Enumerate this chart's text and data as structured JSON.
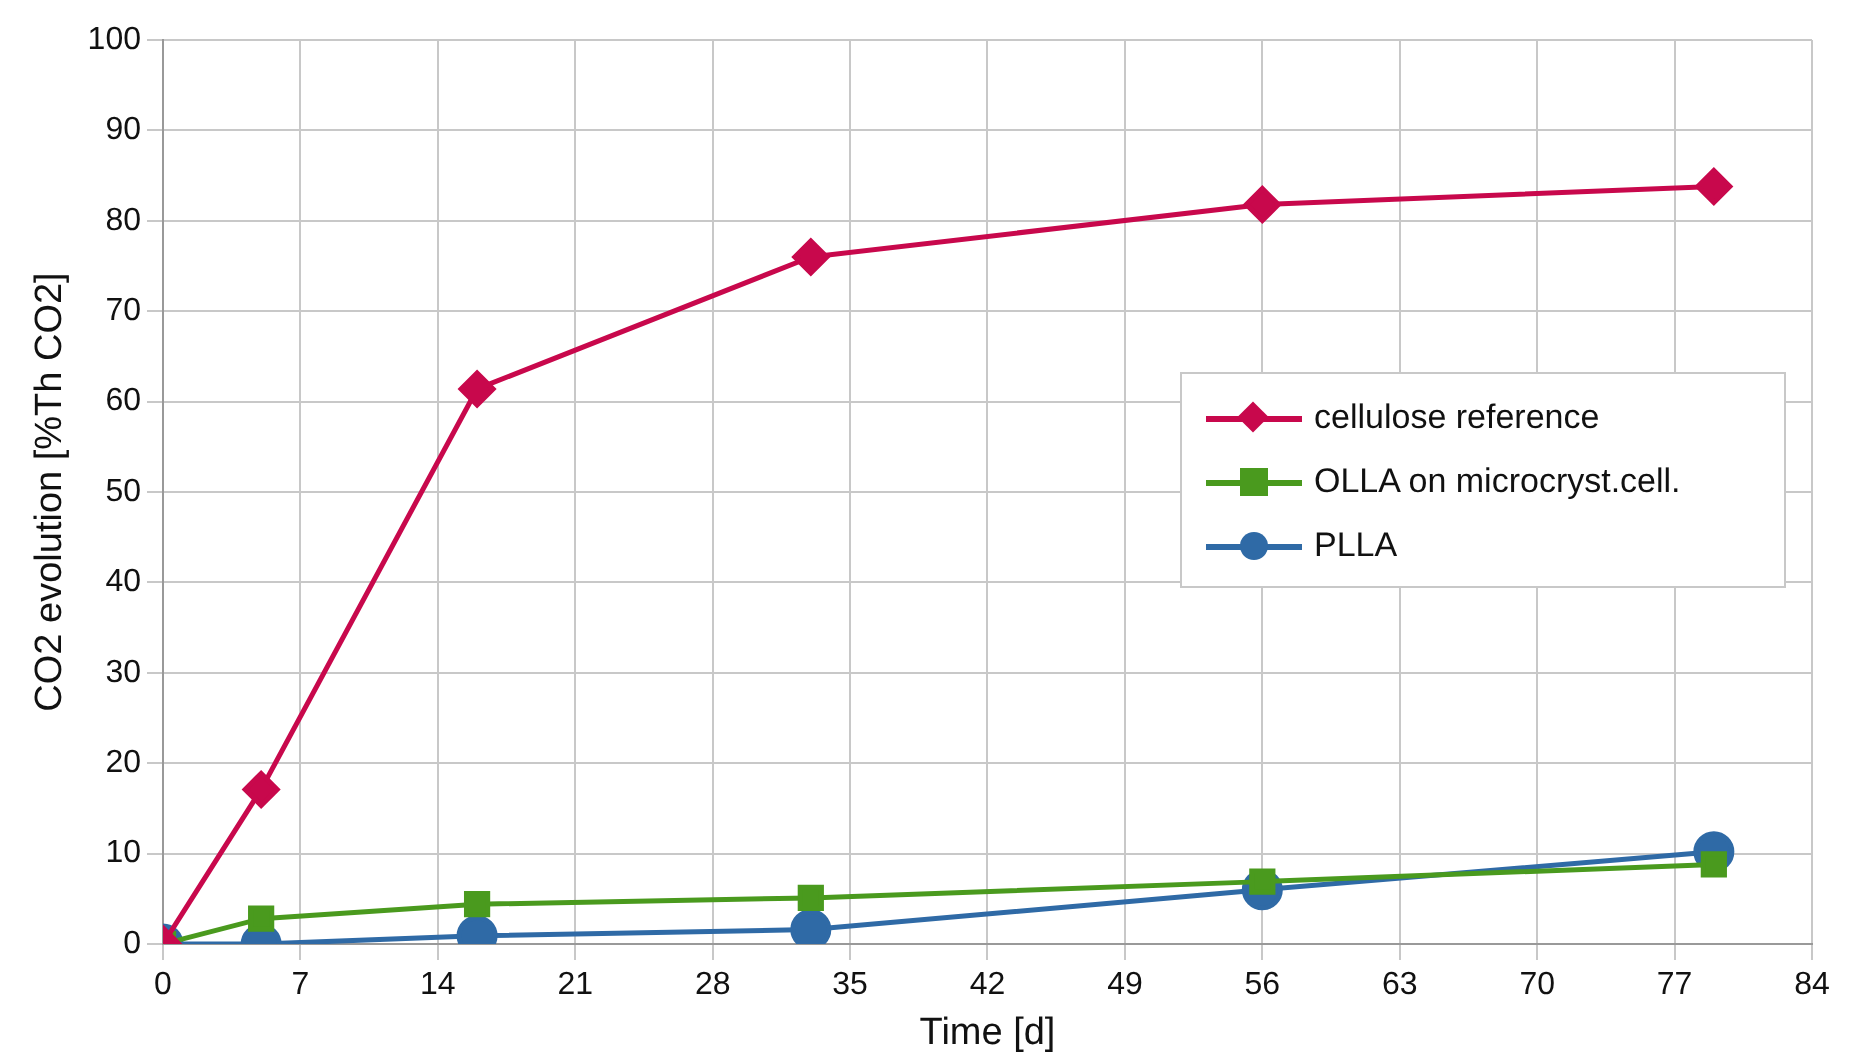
{
  "chart_data": {
    "type": "line",
    "xlabel": "Time [d]",
    "ylabel": "CO2 evolution [%Th CO2]",
    "x": [
      0,
      5,
      16,
      33,
      56,
      79
    ],
    "xlim": [
      0,
      84
    ],
    "xticks": [
      0,
      7,
      14,
      21,
      28,
      35,
      42,
      49,
      56,
      63,
      70,
      77,
      84
    ],
    "ylim": [
      0,
      100
    ],
    "yticks": [
      0,
      10,
      20,
      30,
      40,
      50,
      60,
      70,
      80,
      90,
      100
    ],
    "grid": true,
    "legend": "right",
    "series": [
      {
        "name": "cellulose reference",
        "color": "#c8084c",
        "marker": "diamond",
        "values": [
          0,
          17.1,
          61.4,
          76,
          81.8,
          83.8
        ]
      },
      {
        "name": "OLLA on microcryst.cell.",
        "color": "#4a9a1e",
        "marker": "square",
        "values": [
          0,
          2.8,
          4.4,
          5.1,
          6.9,
          8.8
        ]
      },
      {
        "name": "PLLA",
        "color": "#2f6aa6",
        "marker": "circle",
        "values": [
          0,
          0,
          0.9,
          1.6,
          6,
          10.2
        ]
      }
    ]
  }
}
